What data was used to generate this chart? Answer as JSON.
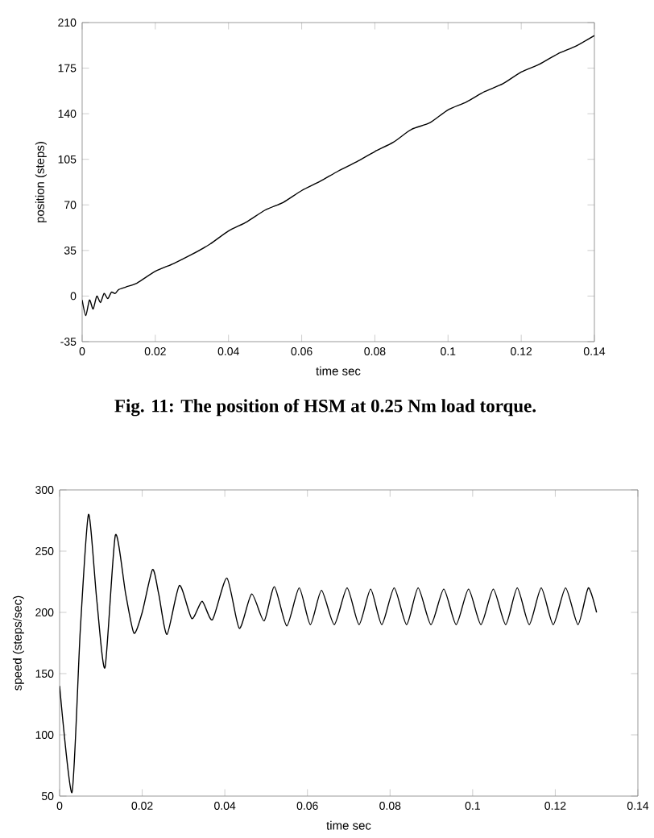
{
  "chart_data": [
    {
      "type": "line",
      "xlabel": "time sec",
      "ylabel": "position (steps)",
      "annotations": [
        "Fig. 11: The position of HSM at 0.25 Nm load torque."
      ],
      "x": [
        0,
        0.001,
        0.002,
        0.003,
        0.004,
        0.005,
        0.006,
        0.007,
        0.008,
        0.009,
        0.01,
        0.012,
        0.015,
        0.02,
        0.025,
        0.03,
        0.035,
        0.04,
        0.045,
        0.05,
        0.055,
        0.06,
        0.065,
        0.07,
        0.075,
        0.08,
        0.085,
        0.09,
        0.095,
        0.1,
        0.105,
        0.11,
        0.115,
        0.12,
        0.125,
        0.13,
        0.135,
        0.14
      ],
      "series": [
        {
          "color": "#000000",
          "values": [
            -3,
            -15,
            -3,
            -10,
            0,
            -5,
            2,
            -2,
            3,
            2,
            5,
            7,
            10,
            19,
            25,
            32,
            40,
            50,
            57,
            66,
            72,
            81,
            88,
            96,
            103,
            111,
            118,
            128,
            133,
            143,
            149,
            157,
            163,
            172,
            178,
            186,
            192,
            200
          ]
        }
      ],
      "xlim": [
        0,
        0.14
      ],
      "xticks": [
        0,
        0.02,
        0.04,
        0.06,
        0.08,
        0.1,
        0.12,
        0.14
      ],
      "ylim": [
        -35,
        210
      ],
      "yticks": [
        -35,
        0,
        35,
        70,
        105,
        140,
        175,
        210
      ]
    },
    {
      "type": "line",
      "xlabel": "time  sec",
      "ylabel": "speed (steps/sec)",
      "x": [
        0,
        0.003,
        0.005,
        0.007,
        0.009,
        0.011,
        0.0135,
        0.016,
        0.018,
        0.02,
        0.0225,
        0.024,
        0.026,
        0.029,
        0.032,
        0.0345,
        0.037,
        0.0405,
        0.0435,
        0.0465,
        0.0495,
        0.052,
        0.055,
        0.058,
        0.0607,
        0.0634,
        0.0665,
        0.0696,
        0.0725,
        0.0753,
        0.078,
        0.081,
        0.084,
        0.0868,
        0.0899,
        0.093,
        0.096,
        0.099,
        0.102,
        0.105,
        0.108,
        0.1108,
        0.1137,
        0.1166,
        0.1195,
        0.1225,
        0.1255,
        0.128,
        0.13
      ],
      "series": [
        {
          "color": "#000000",
          "values": [
            140,
            53,
            185,
            280,
            210,
            155,
            263,
            215,
            183,
            200,
            235,
            215,
            182,
            222,
            195,
            209,
            194,
            228,
            187,
            215,
            193,
            221,
            189,
            220,
            190,
            218,
            190,
            220,
            190,
            219,
            190,
            220,
            190,
            220,
            190,
            219,
            190,
            219,
            190,
            219,
            190,
            220,
            190,
            220,
            190,
            220,
            190,
            220,
            200
          ]
        }
      ],
      "xlim": [
        0,
        0.14
      ],
      "xticks": [
        0,
        0.02,
        0.04,
        0.06,
        0.08,
        0.1,
        0.12,
        0.14
      ],
      "ylim": [
        50,
        300
      ],
      "yticks": [
        50,
        100,
        150,
        200,
        250,
        300
      ]
    }
  ]
}
